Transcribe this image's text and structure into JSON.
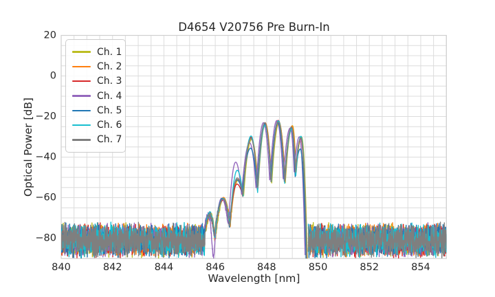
{
  "title": "D4654 V20756 Pre Burn-In",
  "axes": {
    "xlabel": "Wavelength [nm]",
    "ylabel": "Optical Power [dB]",
    "xlim": [
      840,
      855
    ],
    "ylim": [
      -90,
      20
    ],
    "xticks": [
      840,
      842,
      844,
      846,
      848,
      850,
      852,
      854
    ],
    "yticks": [
      20,
      0,
      -20,
      -40,
      -60,
      -80
    ],
    "x_minor_step_nm": 0.5,
    "y_minor_step_db": 5,
    "grid_color": "#dcdcdc",
    "spine_color": "#cfcfcf",
    "tick_label_color": "#262626"
  },
  "legend": {
    "entries": [
      {
        "label": "Ch. 1",
        "color": "#bcbd22"
      },
      {
        "label": "Ch. 2",
        "color": "#ff7f0e"
      },
      {
        "label": "Ch. 3",
        "color": "#d62728"
      },
      {
        "label": "Ch. 4",
        "color": "#9467bd"
      },
      {
        "label": "Ch. 5",
        "color": "#1f77b4"
      },
      {
        "label": "Ch. 6",
        "color": "#17becf"
      },
      {
        "label": "Ch. 7",
        "color": "#7f7f7f"
      }
    ]
  },
  "chart_data": {
    "type": "line",
    "title": "D4654 V20756 Pre Burn-In",
    "xlabel": "Wavelength [nm]",
    "ylabel": "Optical Power [dB]",
    "xlim": [
      840,
      855
    ],
    "ylim": [
      -90,
      20
    ],
    "grid": true,
    "legend_position": "upper left",
    "series": [
      {
        "name": "Ch. 1",
        "color": "#bcbd22"
      },
      {
        "name": "Ch. 2",
        "color": "#ff7f0e"
      },
      {
        "name": "Ch. 3",
        "color": "#d62728"
      },
      {
        "name": "Ch. 4",
        "color": "#9467bd"
      },
      {
        "name": "Ch. 5",
        "color": "#1f77b4"
      },
      {
        "name": "Ch. 6",
        "color": "#17becf"
      },
      {
        "name": "Ch. 7",
        "color": "#7f7f7f"
      }
    ],
    "noise_floor": {
      "ranges_nm": [
        [
          840.0,
          845.6
        ],
        [
          849.62,
          855.0
        ]
      ],
      "mean_db": -81,
      "min_db": -90,
      "max_db": -72
    },
    "spectral_lobes_peak_readings": [
      {
        "nm": 845.78,
        "db": -68.0
      },
      {
        "nm": 846.3,
        "db": -60.5
      },
      {
        "nm": 846.85,
        "db": -51.5
      },
      {
        "nm": 847.39,
        "db": -30.8
      },
      {
        "nm": 847.93,
        "db": -23.8
      },
      {
        "nm": 848.45,
        "db": -22.3
      },
      {
        "nm": 848.97,
        "db": -25.2
      },
      {
        "nm": 849.33,
        "db": -30.5
      }
    ],
    "envelope_knots_nm_db": [
      [
        845.6,
        -76.0
      ],
      [
        845.78,
        -68.0
      ],
      [
        845.97,
        -80.0
      ],
      [
        846.3,
        -60.5
      ],
      [
        846.56,
        -74.5
      ],
      [
        846.85,
        -51.5
      ],
      [
        847.07,
        -58.5
      ],
      [
        847.39,
        -30.8
      ],
      [
        847.64,
        -56.0
      ],
      [
        847.93,
        -23.8
      ],
      [
        848.17,
        -52.0
      ],
      [
        848.45,
        -22.3
      ],
      [
        848.7,
        -52.0
      ],
      [
        848.97,
        -25.2
      ],
      [
        849.12,
        -49.0
      ],
      [
        849.33,
        -30.5
      ],
      [
        849.56,
        -93.0
      ]
    ],
    "channel_wl_offsets_nm": [
      0.03,
      0.018,
      0.0,
      -0.05,
      -0.012,
      0.008,
      0.003
    ],
    "peak_overrides": [
      {
        "knot": 2,
        "channel_db": {
          "3": -93.0
        }
      },
      {
        "knot": 5,
        "channel_db": {
          "0": -51.5,
          "1": -51.0,
          "2": -53.3,
          "3": -42.5,
          "4": -51.2,
          "5": -46.5,
          "6": -50.3
        }
      },
      {
        "knot": 7,
        "channel_db": {
          "2": -30.2,
          "3": -33.0,
          "4": -35.6,
          "5": -29.6
        }
      },
      {
        "knot": 15,
        "channel_db": {
          "3": -30.0,
          "4": -36.0
        }
      }
    ]
  }
}
